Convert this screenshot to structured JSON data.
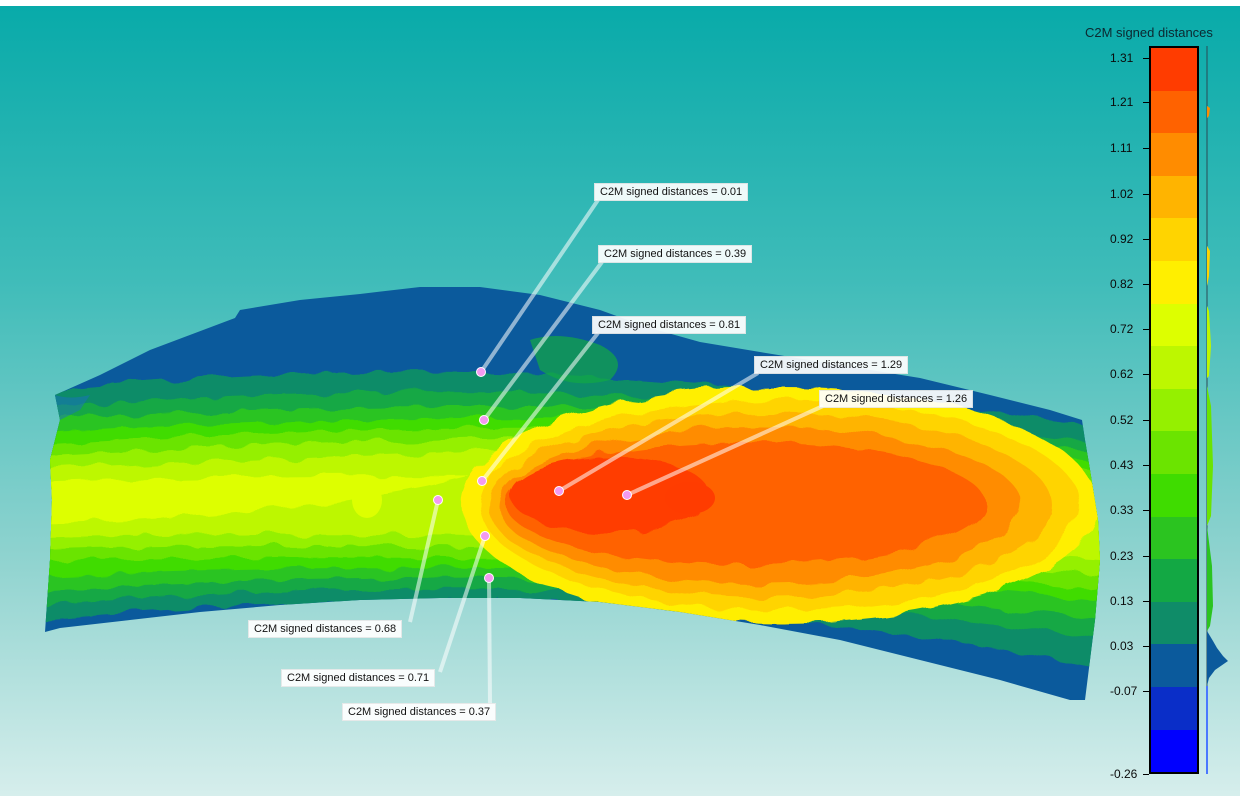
{
  "scalar_field": {
    "title": "C2M signed distances",
    "ticks": [
      "1.31",
      "1.21",
      "1.11",
      "1.02",
      "0.92",
      "0.82",
      "0.72",
      "0.62",
      "0.52",
      "0.43",
      "0.33",
      "0.23",
      "0.13",
      "0.03",
      "-0.07",
      "-0.26"
    ],
    "colors": [
      "#ff3c00",
      "#ff6200",
      "#ff8c00",
      "#ffb400",
      "#ffd400",
      "#ffef00",
      "#ddff00",
      "#bdf700",
      "#95f000",
      "#6be400",
      "#3fdc00",
      "#2bc420",
      "#13a844",
      "#0f8c68",
      "#0b5a9c",
      "#0a2ec8",
      "#0000ff"
    ]
  },
  "picked_points": [
    {
      "label": "C2M signed distances = 0.01"
    },
    {
      "label": "C2M signed distances = 0.39"
    },
    {
      "label": "C2M signed distances = 0.81"
    },
    {
      "label": "C2M signed distances = 1.29"
    },
    {
      "label": "C2M signed distances = 1.26"
    },
    {
      "label": "C2M signed distances = 0.68"
    },
    {
      "label": "C2M signed distances = 0.71"
    },
    {
      "label": "C2M signed distances = 0.37"
    }
  ]
}
